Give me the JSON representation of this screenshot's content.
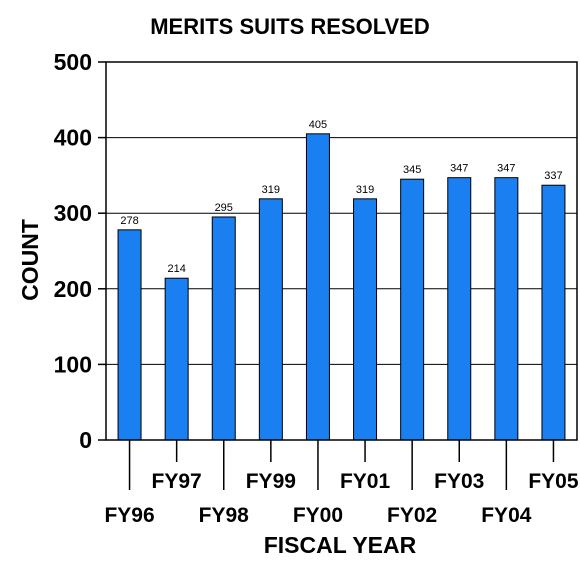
{
  "chart_data": {
    "type": "bar",
    "title": "MERITS SUITS RESOLVED",
    "xlabel": "FISCAL YEAR",
    "ylabel": "COUNT",
    "categories": [
      "FY96",
      "FY97",
      "FY98",
      "FY99",
      "FY00",
      "FY01",
      "FY02",
      "FY03",
      "FY04",
      "FY05"
    ],
    "values": [
      278,
      214,
      295,
      319,
      405,
      319,
      345,
      347,
      347,
      337
    ],
    "data_labels": [
      "278",
      "214",
      "295",
      "319",
      "405",
      "319",
      "345",
      "347",
      "347",
      "337"
    ],
    "ylim": [
      0,
      500
    ],
    "yticks": [
      "0",
      "100",
      "200",
      "300",
      "400",
      "500"
    ],
    "ytick_values": [
      0,
      100,
      200,
      300,
      400,
      500
    ],
    "grid": true,
    "legend": "none",
    "bar_color": "#1a7ff0",
    "grid_color": "#000000"
  }
}
